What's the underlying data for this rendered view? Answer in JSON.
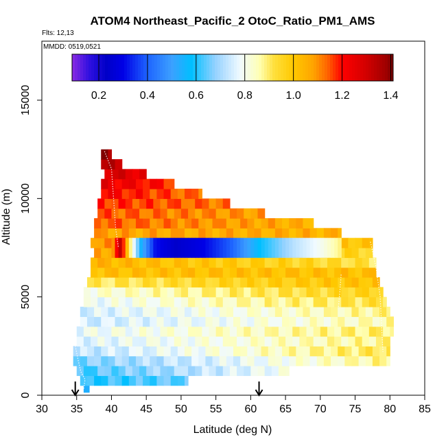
{
  "chart_data": {
    "type": "heatmap",
    "title": "ATOM4 Northeast_Pacific_2 OtoC_Ratio_PM1_AMS",
    "flights_note": "Flts: 12,13",
    "date_note": "MMDD: 0519,0521",
    "xlabel": "Latitude (deg N)",
    "ylabel": "Altitude (m)",
    "xlim": [
      30,
      85
    ],
    "ylim": [
      0,
      18000
    ],
    "x_ticks": [
      30,
      35,
      40,
      45,
      50,
      55,
      60,
      65,
      70,
      75,
      80,
      85
    ],
    "y_ticks": [
      0,
      5000,
      10000,
      15000
    ],
    "colorbar": {
      "range": [
        0.09,
        1.41
      ],
      "ticks": [
        0.2,
        0.4,
        0.6,
        0.8,
        1.0,
        1.2,
        1.4
      ],
      "tick_labels": [
        "0.2",
        "0.4",
        "0.6",
        "0.8",
        "1.0",
        "1.2",
        "1.4"
      ],
      "gradient": [
        [
          0.09,
          "#8a2be2"
        ],
        [
          0.16,
          "#3010e0"
        ],
        [
          0.23,
          "#0000c8"
        ],
        [
          0.3,
          "#0000e6"
        ],
        [
          0.4,
          "#1e64ff"
        ],
        [
          0.5,
          "#3ca0ff"
        ],
        [
          0.58,
          "#00bfff"
        ],
        [
          0.68,
          "#96d2ff"
        ],
        [
          0.78,
          "#f0faff"
        ],
        [
          0.86,
          "#ffffb4"
        ],
        [
          0.92,
          "#ffe03c"
        ],
        [
          1.0,
          "#ffc800"
        ],
        [
          1.08,
          "#ffa500"
        ],
        [
          1.14,
          "#ff6400"
        ],
        [
          1.2,
          "#ff0000"
        ],
        [
          1.3,
          "#d20000"
        ],
        [
          1.38,
          "#a00000"
        ],
        [
          1.41,
          "#780000"
        ]
      ]
    },
    "arrows_latitude": [
      34.8,
      61.2
    ],
    "rows": [
      {
        "alt": [
          150,
          700
        ],
        "lat": [
          36.0,
          36.8
        ],
        "start": 0.57,
        "end": 0.57
      },
      {
        "alt": [
          500,
          1000
        ],
        "lat": [
          35.5,
          51.0
        ],
        "start": 0.6,
        "end": 0.65
      },
      {
        "alt": [
          1000,
          1500
        ],
        "lat": [
          35.0,
          65.5
        ],
        "start": 0.62,
        "end": 0.8
      },
      {
        "alt": [
          1500,
          2000
        ],
        "lat": [
          34.5,
          80.0
        ],
        "start": 0.66,
        "end": 0.88
      },
      {
        "alt": [
          2000,
          2500
        ],
        "lat": [
          34.5,
          80.0
        ],
        "start": 0.72,
        "end": 0.92
      },
      {
        "alt": [
          2500,
          3000
        ],
        "lat": [
          35.0,
          80.0
        ],
        "start": 0.76,
        "end": 0.88
      },
      {
        "alt": [
          3000,
          3500
        ],
        "lat": [
          35.0,
          80.5
        ],
        "start": 0.78,
        "end": 0.9
      },
      {
        "alt": [
          3500,
          4000
        ],
        "lat": [
          35.5,
          80.5
        ],
        "start": 0.74,
        "end": 0.86
      },
      {
        "alt": [
          4000,
          4500
        ],
        "lat": [
          35.5,
          80.0
        ],
        "start": 0.75,
        "end": 0.88
      },
      {
        "alt": [
          4500,
          5000
        ],
        "lat": [
          36.0,
          79.5
        ],
        "start": 0.78,
        "end": 0.93
      },
      {
        "alt": [
          5000,
          5500
        ],
        "lat": [
          36.0,
          79.0
        ],
        "start": 0.82,
        "end": 0.97
      },
      {
        "alt": [
          5500,
          6000
        ],
        "lat": [
          36.5,
          78.5
        ],
        "start": 0.9,
        "end": 1.02
      },
      {
        "alt": [
          6000,
          6500
        ],
        "lat": [
          37.0,
          78.0
        ],
        "start": 1.02,
        "end": 1.02
      },
      {
        "alt": [
          6500,
          7000
        ],
        "lat": [
          37.0,
          78.0
        ],
        "start": 1.05,
        "end": 0.92
      },
      {
        "alt": [
          7000,
          7500
        ],
        "lat": [
          37.5,
          77.5
        ],
        "start": 1.08,
        "end": 0.95
      },
      {
        "alt": [
          7500,
          8000
        ],
        "lat": [
          37.0,
          77.5
        ],
        "start": 1.1,
        "end": 1.0
      },
      {
        "alt": [
          8000,
          8500
        ],
        "lat": [
          37.5,
          73.0
        ],
        "start": 1.08,
        "end": 1.05
      },
      {
        "alt": [
          8500,
          9000
        ],
        "lat": [
          37.5,
          69.0
        ],
        "start": 1.15,
        "end": 1.05
      },
      {
        "alt": [
          9000,
          9500
        ],
        "lat": [
          38.0,
          62.0
        ],
        "start": 1.15,
        "end": 1.08
      },
      {
        "alt": [
          9500,
          10000
        ],
        "lat": [
          38.0,
          57.0
        ],
        "start": 1.18,
        "end": 1.12
      },
      {
        "alt": [
          10000,
          10500
        ],
        "lat": [
          38.5,
          53.0
        ],
        "start": 1.22,
        "end": 1.12
      },
      {
        "alt": [
          10500,
          11000
        ],
        "lat": [
          38.5,
          49.0
        ],
        "start": 1.25,
        "end": 1.18
      },
      {
        "alt": [
          11000,
          11500
        ],
        "lat": [
          39.0,
          45.0
        ],
        "start": 1.3,
        "end": 1.25
      },
      {
        "alt": [
          11500,
          12000
        ],
        "lat": [
          38.5,
          41.5
        ],
        "start": 1.35,
        "end": 1.3
      },
      {
        "alt": [
          12000,
          12500
        ],
        "lat": [
          38.5,
          40.0
        ],
        "start": 1.38,
        "end": 1.35
      }
    ],
    "anomaly": {
      "alt": [
        7000,
        8000
      ],
      "points": [
        {
          "lat": 40.0,
          "value": 1.1
        },
        {
          "lat": 41.0,
          "value": 1.32
        },
        {
          "lat": 42.5,
          "value": 0.88
        },
        {
          "lat": 44.0,
          "value": 0.55
        },
        {
          "lat": 46.0,
          "value": 0.32
        },
        {
          "lat": 49.0,
          "value": 0.24
        },
        {
          "lat": 53.0,
          "value": 0.3
        },
        {
          "lat": 57.0,
          "value": 0.4
        },
        {
          "lat": 61.0,
          "value": 0.58
        },
        {
          "lat": 66.0,
          "value": 0.72
        },
        {
          "lat": 70.0,
          "value": 0.8
        },
        {
          "lat": 73.0,
          "value": 0.9
        }
      ]
    }
  }
}
